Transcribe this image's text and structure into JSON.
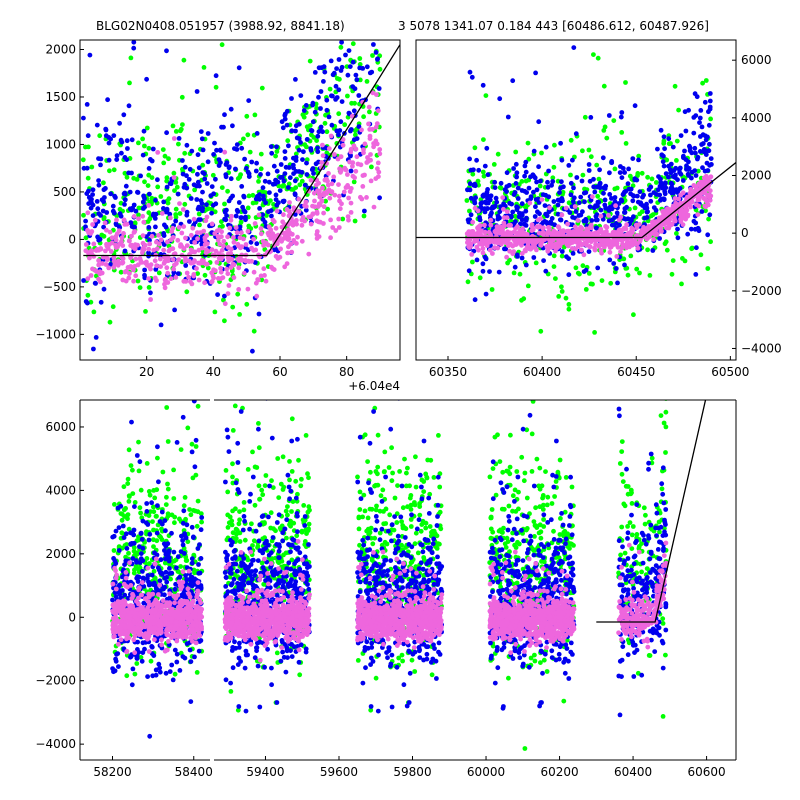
{
  "title_left": "BLG02N0408.051957 (3988.92, 8841.18)",
  "title_right": "3 5078 1341.07 0.184 443 [60486.612, 60487.926]",
  "colors": {
    "green": "#00ff00",
    "blue": "#0000ee",
    "pink": "#ee66dd",
    "model": "#000000"
  },
  "chart_data": [
    {
      "type": "scatter",
      "panel": "top-left",
      "xlim": [
        0,
        96
      ],
      "ylim": [
        -1270,
        2100
      ],
      "x_offset_label": "+6.04e4",
      "xticks": [
        20,
        40,
        60,
        80
      ],
      "yticks": [
        -1000,
        -500,
        0,
        500,
        1000,
        1500,
        2000
      ],
      "y_axis_side": "left",
      "data_x_range": [
        1,
        90
      ],
      "model": {
        "x": [
          1,
          56,
          88,
          96
        ],
        "y": [
          -170,
          -170,
          1600,
          2050
        ]
      }
    },
    {
      "type": "scatter",
      "panel": "top-right",
      "xlim": [
        60333,
        60503
      ],
      "ylim": [
        -4400,
        6700
      ],
      "xticks": [
        60350,
        60400,
        60450,
        60500
      ],
      "yticks": [
        -4000,
        -2000,
        0,
        2000,
        4000,
        6000
      ],
      "y_axis_side": "right",
      "data_x_range": [
        60360,
        60490
      ],
      "model": {
        "x": [
          60333,
          60453,
          60503
        ],
        "y": [
          -150,
          -150,
          2450
        ]
      }
    },
    {
      "type": "scatter",
      "panel": "bottom",
      "segments": [
        {
          "xlim": [
            58120,
            58440
          ],
          "xticks": [
            58200,
            58400
          ]
        },
        {
          "xlim": [
            59260,
            60680
          ],
          "xticks": [
            59400,
            59600,
            59800,
            60000,
            60200,
            60400,
            60600
          ]
        }
      ],
      "ylim": [
        -4500,
        6850
      ],
      "yticks": [
        -4000,
        -2000,
        0,
        2000,
        4000,
        6000
      ],
      "y_axis_side": "left",
      "seasons": [
        [
          58200,
          58420
        ],
        [
          59290,
          59520
        ],
        [
          59650,
          59880
        ],
        [
          60010,
          60240
        ],
        [
          60360,
          60490
        ]
      ],
      "model": {
        "x": [
          60300,
          60460,
          60600
        ],
        "y": [
          -150,
          -150,
          7000
        ]
      }
    }
  ]
}
